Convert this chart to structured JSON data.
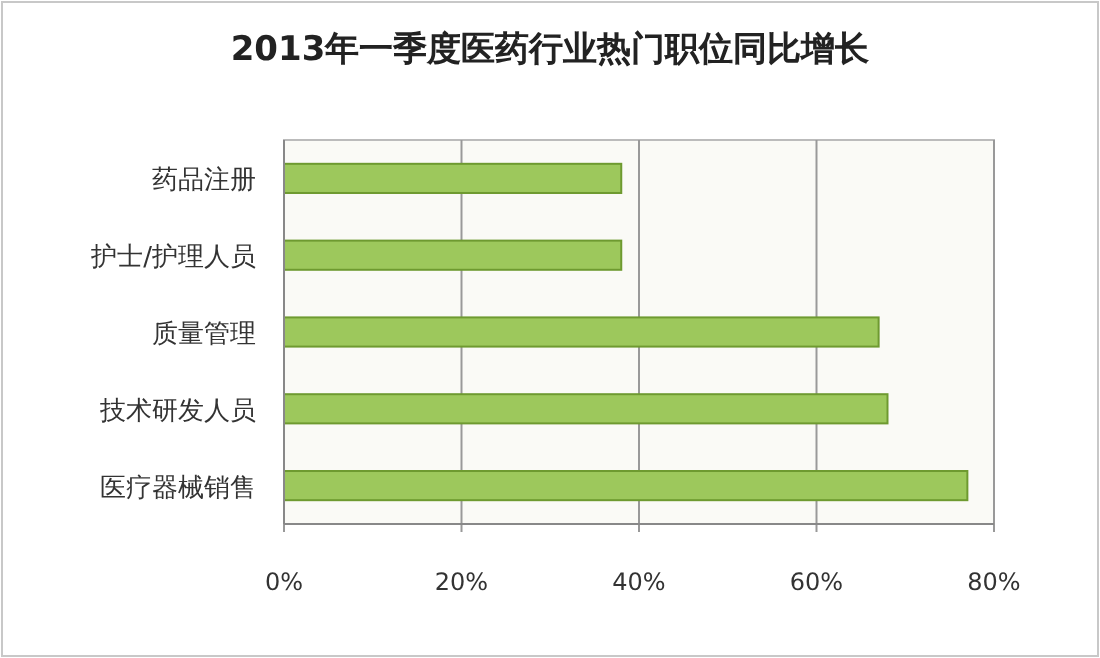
{
  "chart_data": {
    "type": "bar",
    "orientation": "horizontal",
    "title": "2013年一季度医药行业热门职位同比增长",
    "categories": [
      "药品注册",
      "护士/护理人员",
      "质量管理",
      "技术研发人员",
      "医疗器械销售"
    ],
    "values": [
      38,
      38,
      67,
      68,
      77
    ],
    "color": "#9dc85c",
    "xlim": [
      0,
      80
    ],
    "xticks": [
      {
        "value": 0,
        "label": "0%"
      },
      {
        "value": 20,
        "label": "20%"
      },
      {
        "value": 40,
        "label": "40%"
      },
      {
        "value": 60,
        "label": "60%"
      },
      {
        "value": 80,
        "label": "80%"
      }
    ],
    "grid": "x"
  }
}
